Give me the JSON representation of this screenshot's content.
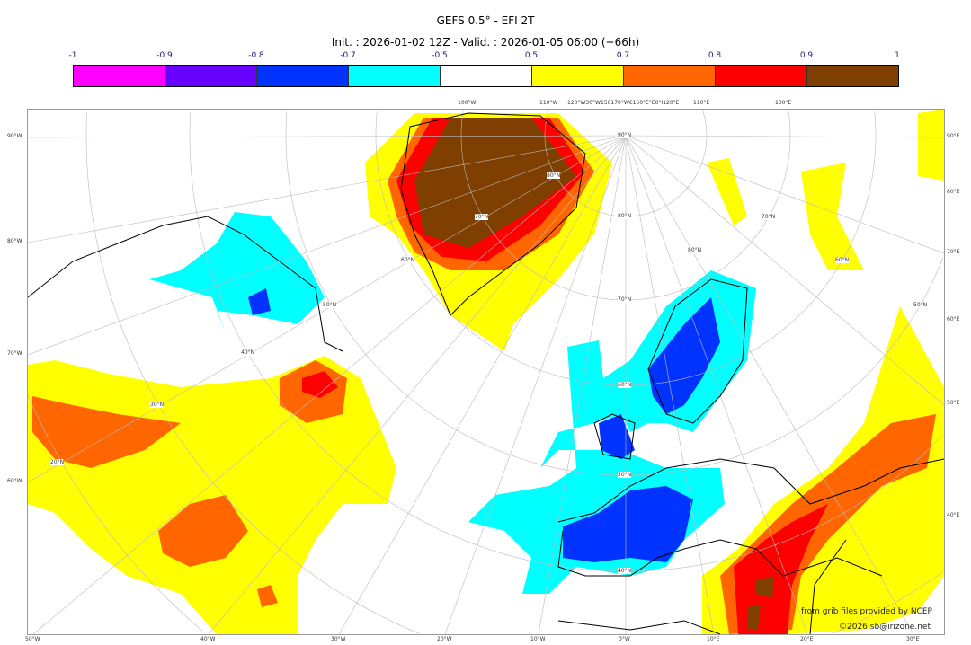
{
  "title": "GEFS 0.5° - EFI 2T",
  "subtitle": "Init. : 2026-01-02 12Z - Valid. : 2026-01-05 06:00 (+66h)",
  "colorbar": {
    "ticks": [
      "-1",
      "-0.9",
      "-0.8",
      "-0.7",
      "-0.5",
      "0.5",
      "0.7",
      "0.8",
      "0.9",
      "1"
    ],
    "colors": [
      "#ff00ff",
      "#6600ff",
      "#0033ff",
      "#00ffff",
      "#ffffff",
      "#ffff00",
      "#ff6600",
      "#ff0000",
      "#7f3f00"
    ]
  },
  "axes": {
    "left": [
      "90°W",
      "80°W",
      "70°W",
      "60°W"
    ],
    "right": [
      "90°E",
      "80°E",
      "70°E",
      "60°E",
      "50°E",
      "40°E"
    ],
    "top": [
      "100°W",
      "110°W",
      "120°W30°W150170°W€150°E°E0°I120°E",
      "110°E",
      "100°E"
    ],
    "bottom": [
      "50°W",
      "40°W",
      "30°W",
      "20°W",
      "10°W",
      "0°W",
      "10°E",
      "20°E",
      "30°E"
    ]
  },
  "lat_labels": [
    "90°N",
    "80°N",
    "70°N",
    "60°N",
    "50°N",
    "40°N",
    "80°N",
    "70°N",
    "60°N",
    "50°N",
    "40°N",
    "30°N",
    "20°N",
    "80°N",
    "70°N",
    "60°N",
    "50°N"
  ],
  "credits": {
    "source": "from grib files provided by NCEP",
    "copyright": "©2026 sb@irizone.net"
  }
}
